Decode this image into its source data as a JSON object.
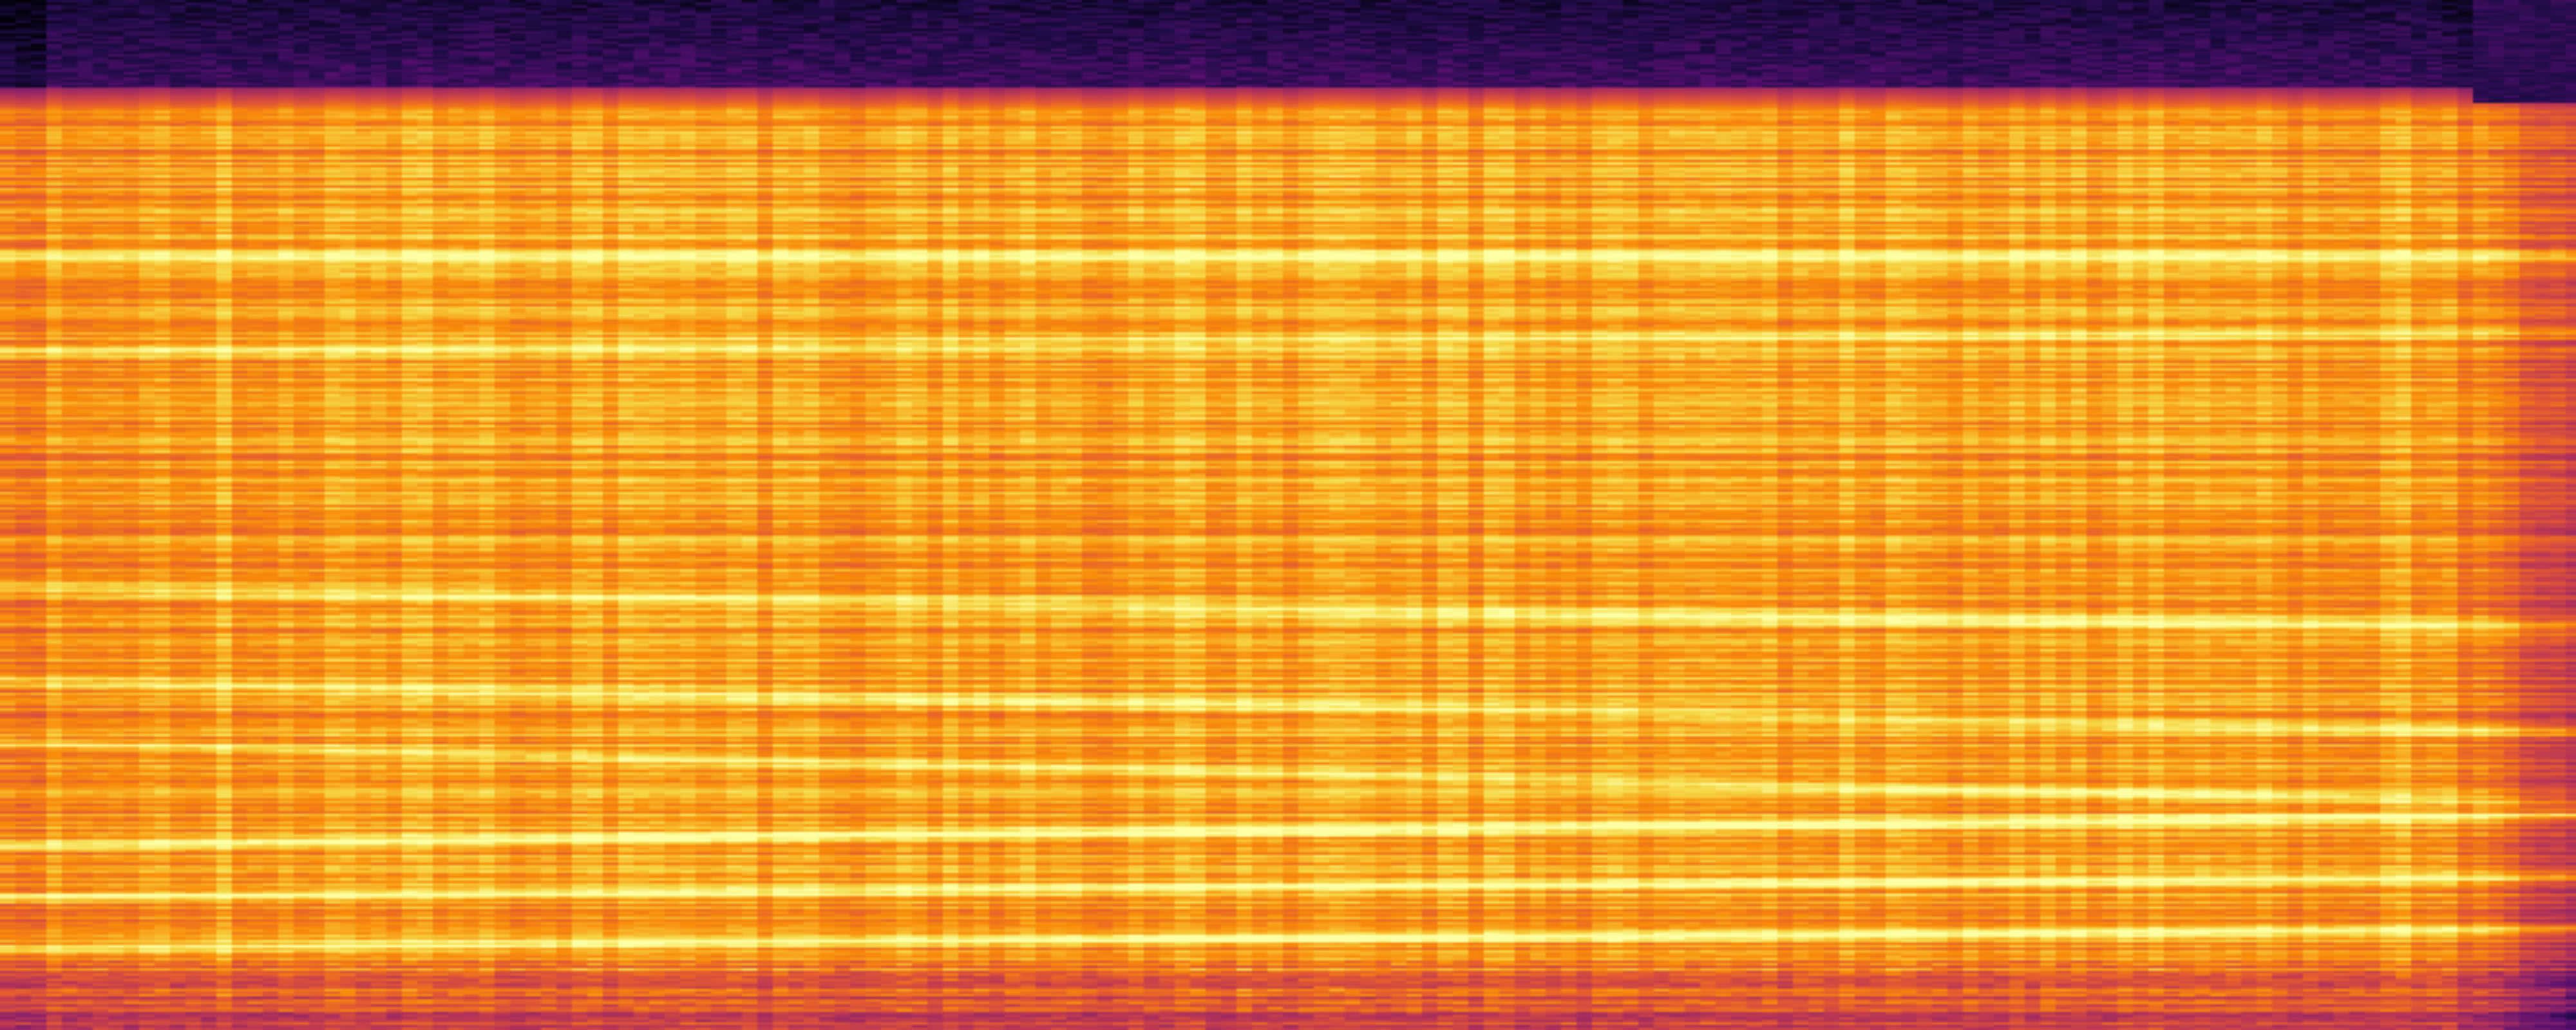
{
  "image": {
    "kind": "spectrogram",
    "colormap": "inferno",
    "axes_visible": false,
    "labels_visible": false
  },
  "palette": {
    "darkest": "#000004",
    "deep_purple": "#2a0a5e",
    "purple": "#6a176e",
    "magenta": "#a52c60",
    "red_orange": "#e35932",
    "orange": "#f98e09",
    "yellow": "#f6d746",
    "pale_yellow": "#fcffa4"
  }
}
